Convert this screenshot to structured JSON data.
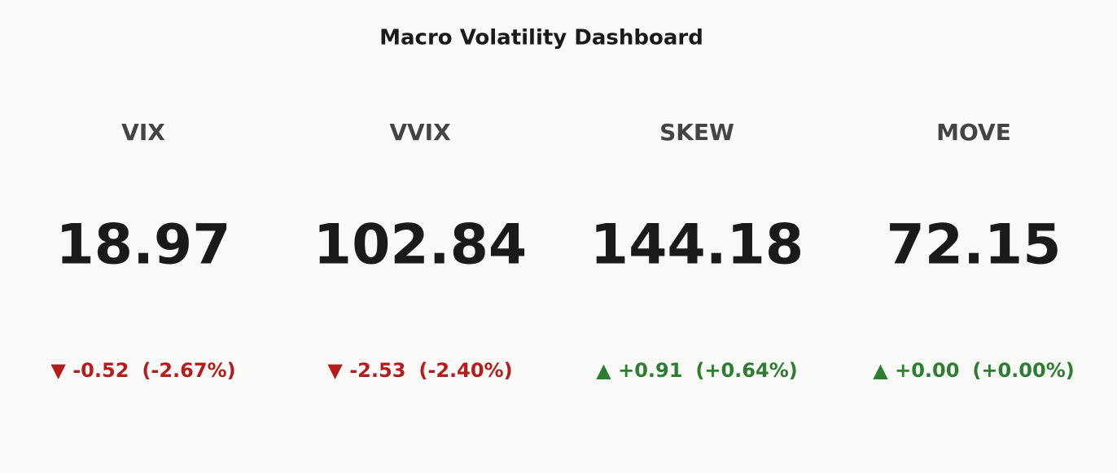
{
  "chart_data": {
    "type": "indicator",
    "title": "Macro Volatility Dashboard",
    "increasing_color": "#2e7d32",
    "decreasing_color": "#b71c1c",
    "indicators": [
      {
        "name": "VIX",
        "value": 18.97,
        "delta": -0.52,
        "delta_pct": -2.67,
        "delta_pct_label": "(-2.67%)"
      },
      {
        "name": "VVIX",
        "value": 102.84,
        "delta": -2.53,
        "delta_pct": -2.4,
        "delta_pct_label": "(-2.40%)"
      },
      {
        "name": "SKEW",
        "value": 144.18,
        "delta": 0.91,
        "delta_label": "+0.91",
        "delta_pct": 0.64,
        "delta_pct_label": "(+0.64%)"
      },
      {
        "name": "MOVE",
        "value": 72.15,
        "delta": 0.0,
        "delta_label": "+0.00",
        "delta_pct": 0.0,
        "delta_pct_label": "(+0.00%)"
      }
    ]
  }
}
